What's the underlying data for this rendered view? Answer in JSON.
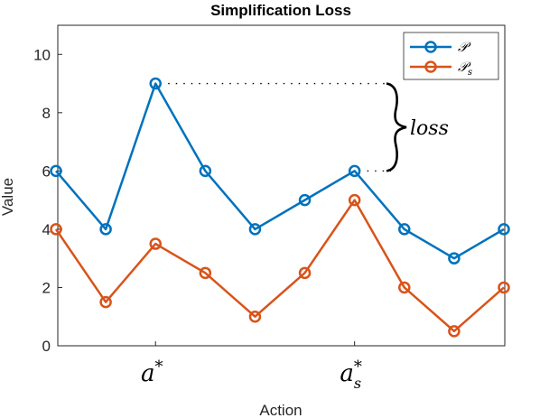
{
  "chart_data": {
    "type": "line",
    "title": "Simplification Loss",
    "xlabel": "Action",
    "ylabel": "Value",
    "xlim": [
      1,
      10
    ],
    "ylim": [
      0,
      11
    ],
    "yticks": [
      "0",
      "2",
      "4",
      "6",
      "8",
      "10"
    ],
    "x": [
      1,
      2,
      3,
      4,
      5,
      6,
      7,
      8,
      9,
      10
    ],
    "series": [
      {
        "name": "𝒫",
        "color": "#0072BD",
        "values": [
          6,
          4,
          9,
          6,
          4,
          5,
          6,
          4,
          3,
          4
        ]
      },
      {
        "name": "𝒫",
        "name_sub": "s",
        "color": "#D95319",
        "values": [
          4,
          1.5,
          3.5,
          2.5,
          1,
          2.5,
          5,
          2,
          0.5,
          2
        ]
      }
    ],
    "xticks": [
      {
        "x": 3,
        "base": "a",
        "sup": "*",
        "sub": ""
      },
      {
        "x": 7,
        "base": "a",
        "sup": "*",
        "sub": "s"
      }
    ],
    "annotation": {
      "text": "loss",
      "x_from": 3,
      "x_to": 7,
      "y_top": 9,
      "y_bottom": 6
    },
    "grid": false,
    "legend_position": "top-right"
  }
}
